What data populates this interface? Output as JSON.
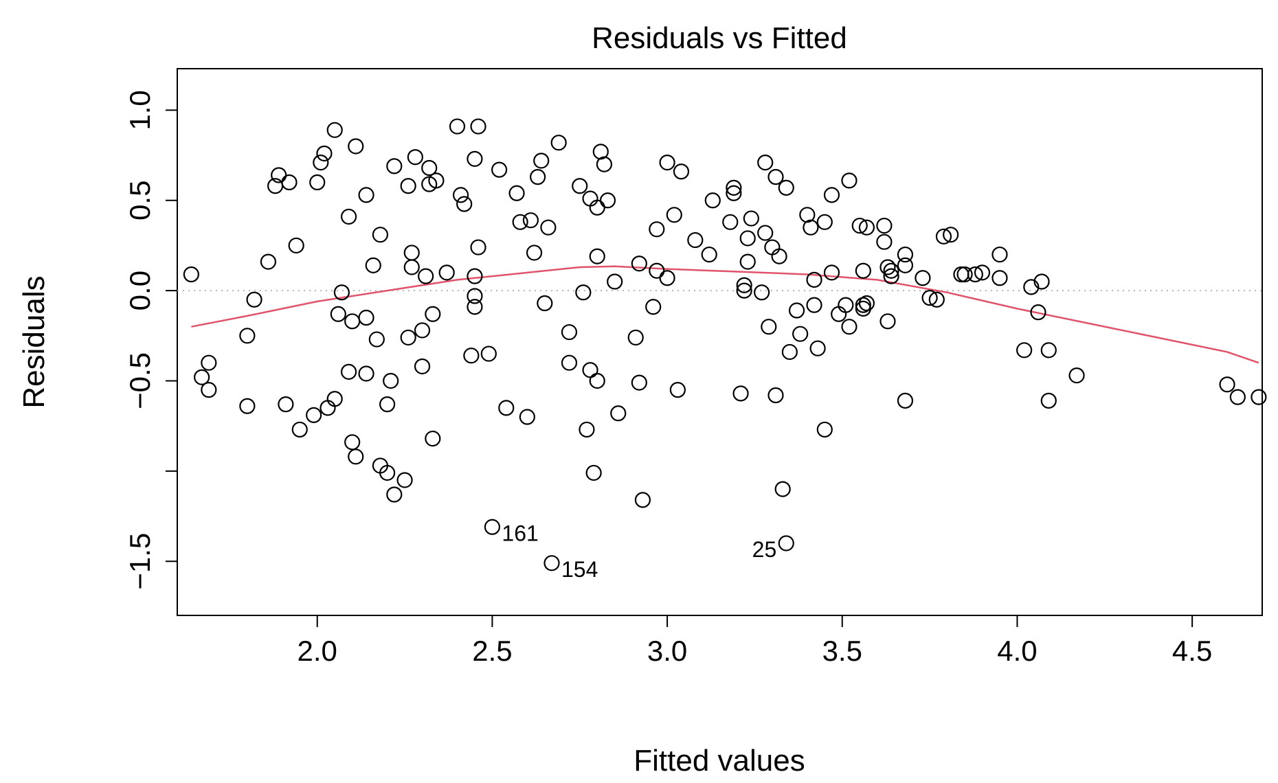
{
  "chart_data": {
    "type": "scatter",
    "title": "Residuals vs Fitted",
    "xlabel": "Fitted values",
    "ylabel": "Residuals",
    "xlim": [
      1.6,
      4.7
    ],
    "ylim": [
      -1.8,
      1.23
    ],
    "x_ticks": [
      2.0,
      2.5,
      3.0,
      3.5,
      4.0,
      4.5
    ],
    "x_tick_labels": [
      "2.0",
      "2.5",
      "3.0",
      "3.5",
      "4.0",
      "4.5"
    ],
    "y_ticks": [
      -1.5,
      -1.0,
      -0.5,
      0.0,
      0.5,
      1.0
    ],
    "y_tick_labels": [
      "−1.5",
      "",
      "−0.5",
      "0.0",
      "0.5",
      "1.0"
    ],
    "reference_line": {
      "y": 0.0,
      "style": "dotted",
      "color": "#b3b3b3"
    },
    "smooth_color": "#df536b",
    "point_color": "#000000",
    "points": [
      [
        1.64,
        0.09
      ],
      [
        1.67,
        -0.48
      ],
      [
        1.69,
        -0.55
      ],
      [
        1.69,
        -0.4
      ],
      [
        1.8,
        -0.64
      ],
      [
        1.8,
        -0.25
      ],
      [
        1.82,
        -0.05
      ],
      [
        1.86,
        0.16
      ],
      [
        1.88,
        0.58
      ],
      [
        1.89,
        0.64
      ],
      [
        1.91,
        -0.63
      ],
      [
        1.92,
        0.6
      ],
      [
        1.94,
        0.25
      ],
      [
        1.95,
        -0.77
      ],
      [
        1.99,
        -0.69
      ],
      [
        2.0,
        0.6
      ],
      [
        2.01,
        0.71
      ],
      [
        2.02,
        0.76
      ],
      [
        2.03,
        -0.65
      ],
      [
        2.05,
        0.89
      ],
      [
        2.05,
        -0.6
      ],
      [
        2.06,
        -0.13
      ],
      [
        2.07,
        -0.01
      ],
      [
        2.09,
        0.41
      ],
      [
        2.09,
        -0.45
      ],
      [
        2.1,
        -0.84
      ],
      [
        2.1,
        -0.17
      ],
      [
        2.11,
        0.8
      ],
      [
        2.11,
        -0.92
      ],
      [
        2.14,
        -0.15
      ],
      [
        2.14,
        -0.46
      ],
      [
        2.14,
        0.53
      ],
      [
        2.16,
        0.14
      ],
      [
        2.17,
        -0.27
      ],
      [
        2.18,
        0.31
      ],
      [
        2.18,
        -0.97
      ],
      [
        2.2,
        -0.63
      ],
      [
        2.2,
        -1.01
      ],
      [
        2.21,
        -0.5
      ],
      [
        2.22,
        -1.13
      ],
      [
        2.22,
        0.69
      ],
      [
        2.25,
        -1.05
      ],
      [
        2.26,
        -0.26
      ],
      [
        2.26,
        0.58
      ],
      [
        2.27,
        0.21
      ],
      [
        2.27,
        0.13
      ],
      [
        2.28,
        0.74
      ],
      [
        2.3,
        -0.42
      ],
      [
        2.3,
        -0.22
      ],
      [
        2.31,
        0.08
      ],
      [
        2.32,
        0.68
      ],
      [
        2.32,
        0.59
      ],
      [
        2.33,
        -0.82
      ],
      [
        2.33,
        -0.13
      ],
      [
        2.34,
        0.61
      ],
      [
        2.37,
        0.1
      ],
      [
        2.4,
        0.91
      ],
      [
        2.41,
        0.53
      ],
      [
        2.42,
        0.48
      ],
      [
        2.44,
        -0.36
      ],
      [
        2.45,
        0.73
      ],
      [
        2.45,
        -0.03
      ],
      [
        2.45,
        0.08
      ],
      [
        2.45,
        -0.09
      ],
      [
        2.46,
        0.24
      ],
      [
        2.46,
        0.91
      ],
      [
        2.49,
        -0.35
      ],
      [
        2.52,
        0.67
      ],
      [
        2.54,
        -0.65
      ],
      [
        2.57,
        0.54
      ],
      [
        2.58,
        0.38
      ],
      [
        2.6,
        -0.7
      ],
      [
        2.61,
        0.39
      ],
      [
        2.62,
        0.21
      ],
      [
        2.63,
        0.63
      ],
      [
        2.64,
        0.72
      ],
      [
        2.65,
        -0.07
      ],
      [
        2.66,
        0.35
      ],
      [
        2.69,
        0.82
      ],
      [
        2.72,
        -0.4
      ],
      [
        2.72,
        -0.23
      ],
      [
        2.75,
        0.58
      ],
      [
        2.76,
        -0.01
      ],
      [
        2.77,
        -0.77
      ],
      [
        2.78,
        -0.44
      ],
      [
        2.78,
        0.51
      ],
      [
        2.79,
        -1.01
      ],
      [
        2.8,
        -0.5
      ],
      [
        2.8,
        0.46
      ],
      [
        2.8,
        0.19
      ],
      [
        2.81,
        0.77
      ],
      [
        2.82,
        0.7
      ],
      [
        2.83,
        0.5
      ],
      [
        2.85,
        0.05
      ],
      [
        2.86,
        -0.68
      ],
      [
        2.91,
        -0.26
      ],
      [
        2.92,
        0.15
      ],
      [
        2.92,
        -0.51
      ],
      [
        2.93,
        -1.16
      ],
      [
        2.96,
        -0.09
      ],
      [
        2.97,
        0.34
      ],
      [
        2.97,
        0.11
      ],
      [
        3.0,
        0.07
      ],
      [
        3.0,
        0.71
      ],
      [
        3.02,
        0.42
      ],
      [
        3.03,
        -0.55
      ],
      [
        3.04,
        0.66
      ],
      [
        3.08,
        0.28
      ],
      [
        3.12,
        0.2
      ],
      [
        3.13,
        0.5
      ],
      [
        3.18,
        0.38
      ],
      [
        3.19,
        0.54
      ],
      [
        3.19,
        0.57
      ],
      [
        3.21,
        -0.57
      ],
      [
        3.22,
        0.0
      ],
      [
        3.22,
        0.03
      ],
      [
        3.23,
        0.16
      ],
      [
        3.23,
        0.29
      ],
      [
        3.24,
        0.4
      ],
      [
        3.27,
        -0.01
      ],
      [
        3.28,
        0.32
      ],
      [
        3.28,
        0.71
      ],
      [
        3.29,
        -0.2
      ],
      [
        3.3,
        0.24
      ],
      [
        3.31,
        0.63
      ],
      [
        3.31,
        -0.58
      ],
      [
        3.32,
        0.19
      ],
      [
        3.33,
        -1.1
      ],
      [
        3.34,
        0.57
      ],
      [
        3.35,
        -0.34
      ],
      [
        3.37,
        -0.11
      ],
      [
        3.38,
        -0.24
      ],
      [
        3.4,
        0.42
      ],
      [
        3.41,
        0.35
      ],
      [
        3.42,
        -0.08
      ],
      [
        3.42,
        0.06
      ],
      [
        3.43,
        -0.32
      ],
      [
        3.45,
        -0.77
      ],
      [
        3.45,
        0.38
      ],
      [
        3.47,
        0.53
      ],
      [
        3.47,
        0.1
      ],
      [
        3.49,
        -0.13
      ],
      [
        3.51,
        -0.08
      ],
      [
        3.52,
        0.61
      ],
      [
        3.52,
        -0.2
      ],
      [
        3.55,
        0.36
      ],
      [
        3.56,
        -0.1
      ],
      [
        3.56,
        0.11
      ],
      [
        3.56,
        -0.08
      ],
      [
        3.57,
        0.35
      ],
      [
        3.57,
        -0.07
      ],
      [
        3.62,
        0.27
      ],
      [
        3.62,
        0.36
      ],
      [
        3.63,
        -0.17
      ],
      [
        3.63,
        0.13
      ],
      [
        3.64,
        0.11
      ],
      [
        3.64,
        0.08
      ],
      [
        3.68,
        -0.61
      ],
      [
        3.68,
        0.14
      ],
      [
        3.68,
        0.2
      ],
      [
        3.73,
        0.07
      ],
      [
        3.75,
        -0.04
      ],
      [
        3.77,
        -0.05
      ],
      [
        3.79,
        0.3
      ],
      [
        3.81,
        0.31
      ],
      [
        3.84,
        0.09
      ],
      [
        3.85,
        0.09
      ],
      [
        3.88,
        0.09
      ],
      [
        3.9,
        0.1
      ],
      [
        3.95,
        0.2
      ],
      [
        3.95,
        0.07
      ],
      [
        4.02,
        -0.33
      ],
      [
        4.04,
        0.02
      ],
      [
        4.06,
        -0.12
      ],
      [
        4.07,
        0.05
      ],
      [
        4.09,
        -0.61
      ],
      [
        4.09,
        -0.33
      ],
      [
        4.17,
        -0.47
      ],
      [
        4.6,
        -0.52
      ],
      [
        4.63,
        -0.59
      ],
      [
        4.69,
        -0.59
      ]
    ],
    "labeled_points": [
      {
        "x": 2.5,
        "y": -1.31,
        "label": "161",
        "side": "right"
      },
      {
        "x": 2.67,
        "y": -1.51,
        "label": "154",
        "side": "right"
      },
      {
        "x": 3.34,
        "y": -1.4,
        "label": "25",
        "side": "left"
      }
    ],
    "smooth": [
      [
        1.64,
        -0.2
      ],
      [
        1.8,
        -0.14
      ],
      [
        2.0,
        -0.06
      ],
      [
        2.2,
        0.0
      ],
      [
        2.4,
        0.06
      ],
      [
        2.6,
        0.1
      ],
      [
        2.75,
        0.13
      ],
      [
        2.85,
        0.135
      ],
      [
        3.0,
        0.12
      ],
      [
        3.2,
        0.105
      ],
      [
        3.4,
        0.09
      ],
      [
        3.6,
        0.06
      ],
      [
        3.8,
        -0.01
      ],
      [
        4.0,
        -0.1
      ],
      [
        4.2,
        -0.18
      ],
      [
        4.4,
        -0.26
      ],
      [
        4.6,
        -0.34
      ],
      [
        4.69,
        -0.4
      ]
    ]
  }
}
